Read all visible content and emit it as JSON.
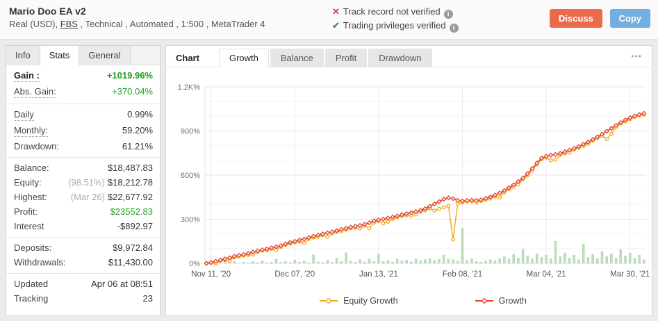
{
  "header": {
    "title": "Mario Doo EA v2",
    "subtitle_prefix": "Real (USD), ",
    "subtitle_link": "FBS",
    "subtitle_suffix": " , Technical , Automated , 1:500 , MetaTrader 4",
    "verification": [
      {
        "status": "fail",
        "icon_glyph": "✕",
        "text": "Track record not verified",
        "info_glyph": "i"
      },
      {
        "status": "ok",
        "icon_glyph": "✔",
        "text": "Trading privileges verified",
        "info_glyph": "i"
      }
    ],
    "discuss_label": "Discuss",
    "copy_label": "Copy"
  },
  "sidebar": {
    "tabs": [
      {
        "label": "Info",
        "active": false
      },
      {
        "label": "Stats",
        "active": true
      },
      {
        "label": "General",
        "active": false
      }
    ],
    "rows": [
      {
        "label": "Gain :",
        "value": "+1019.96%",
        "dotted": true,
        "bold": true,
        "value_class": "green bold"
      },
      {
        "label": "Abs. Gain:",
        "value": "+370.04%",
        "dotted": true,
        "value_class": "green"
      },
      {
        "label": "Daily",
        "value": "0.99%",
        "dotted": true,
        "divider": true
      },
      {
        "label": "Monthly:",
        "value": "59.20%",
        "dotted": true
      },
      {
        "label": "Drawdown:",
        "value": "61.21%"
      },
      {
        "label": "Balance:",
        "value": "$18,487.83",
        "divider": true
      },
      {
        "label": "Equity:",
        "prefix": "(98.51%)",
        "value": "$18,212.78"
      },
      {
        "label": "Highest:",
        "prefix": "(Mar 26)",
        "value": "$22,677.92"
      },
      {
        "label": "Profit:",
        "value": "$23552.83",
        "value_class": "green"
      },
      {
        "label": "Interest",
        "value": "-$892.97"
      },
      {
        "label": "Deposits:",
        "value": "$9,972.84",
        "divider": true
      },
      {
        "label": "Withdrawals:",
        "value": "$11,430.00"
      },
      {
        "label": "Updated",
        "value": "Apr 06 at 08:51",
        "divider": true
      },
      {
        "label": "Tracking",
        "value": "23"
      }
    ]
  },
  "chart_panel": {
    "chart_label": "Chart",
    "tabs": [
      {
        "label": "Growth",
        "active": true
      },
      {
        "label": "Balance",
        "active": false
      },
      {
        "label": "Profit",
        "active": false
      },
      {
        "label": "Drawdown",
        "active": false
      }
    ],
    "menu_icon": "•••"
  },
  "chart_data": {
    "type": "line",
    "title": "Growth",
    "xlabel": "",
    "ylabel": "",
    "ylim": [
      0,
      1200
    ],
    "grid": true,
    "legend_position": "bottom",
    "yticks": [
      {
        "value": 0,
        "label": "0%"
      },
      {
        "value": 300,
        "label": "300%"
      },
      {
        "value": 600,
        "label": "600%"
      },
      {
        "value": 900,
        "label": "900%"
      },
      {
        "value": 1200,
        "label": "1.2K%"
      }
    ],
    "minor_step": 100,
    "xticks": [
      {
        "index": 1,
        "label": "Nov 11, '20"
      },
      {
        "index": 19,
        "label": "Dec 07, '20"
      },
      {
        "index": 37,
        "label": "Jan 13, '21"
      },
      {
        "index": 55,
        "label": "Feb 08, '21"
      },
      {
        "index": 73,
        "label": "Mar 04, '21"
      },
      {
        "index": 91,
        "label": "Mar 30, '21"
      }
    ],
    "series": [
      {
        "name": "Equity Growth",
        "marker": "circle",
        "color": "#F5A623",
        "values": [
          0,
          2,
          0,
          16,
          22,
          18,
          40,
          45,
          54,
          56,
          60,
          77,
          86,
          88,
          98,
          90,
          112,
          126,
          133,
          142,
          146,
          138,
          165,
          176,
          180,
          192,
          180,
          204,
          214,
          218,
          228,
          238,
          240,
          238,
          256,
          238,
          276,
          287,
          272,
          283,
          300,
          314,
          320,
          326,
          323,
          332,
          350,
          360,
          373,
          359,
          370,
          381,
          391,
          162,
          408,
          414,
          420,
          420,
          413,
          424,
          432,
          440,
          454,
          448,
          483,
          504,
          519,
          536,
          570,
          598,
          630,
          672,
          707,
          718,
          700,
          705,
          736,
          748,
          752,
          774,
          785,
          798,
          813,
          834,
          850,
          866,
          845,
          880,
          928,
          950,
          963,
          980,
          994,
          1004,
          1010
        ]
      },
      {
        "name": "Growth",
        "marker": "diamond",
        "color": "#E2452F",
        "values": [
          0,
          6,
          14,
          22,
          30,
          38,
          48,
          55,
          60,
          68,
          78,
          85,
          92,
          98,
          106,
          112,
          120,
          132,
          143,
          150,
          158,
          166,
          175,
          184,
          192,
          200,
          208,
          214,
          222,
          230,
          238,
          246,
          252,
          258,
          266,
          276,
          288,
          295,
          300,
          308,
          315,
          322,
          330,
          338,
          345,
          352,
          360,
          372,
          388,
          404,
          420,
          436,
          446,
          440,
          428,
          424,
          428,
          430,
          428,
          432,
          442,
          452,
          464,
          478,
          495,
          514,
          534,
          556,
          580,
          610,
          645,
          682,
          715,
          728,
          735,
          740,
          748,
          758,
          770,
          782,
          795,
          810,
          825,
          842,
          860,
          878,
          898,
          918,
          938,
          958,
          975,
          990,
          1002,
          1012,
          1020
        ]
      }
    ],
    "bars": {
      "color": "#BEDEBE",
      "edge_color": "#A9D1A9",
      "values": [
        0,
        0,
        6,
        0,
        10,
        4,
        14,
        0,
        8,
        3,
        12,
        5,
        18,
        4,
        8,
        28,
        6,
        12,
        5,
        22,
        8,
        14,
        5,
        58,
        10,
        6,
        20,
        8,
        35,
        12,
        72,
        15,
        8,
        25,
        10,
        30,
        12,
        62,
        12,
        20,
        8,
        28,
        15,
        22,
        10,
        30,
        18,
        25,
        35,
        20,
        28,
        55,
        30,
        25,
        15,
        238,
        20,
        30,
        12,
        8,
        15,
        25,
        18,
        30,
        45,
        28,
        60,
        35,
        95,
        50,
        30,
        65,
        40,
        55,
        30,
        150,
        45,
        70,
        35,
        55,
        25,
        130,
        40,
        60,
        30,
        80,
        45,
        65,
        35,
        95,
        50,
        70,
        35,
        55,
        25
      ]
    },
    "legend": [
      {
        "label": "Equity Growth",
        "color": "#F5A623",
        "marker": "circle"
      },
      {
        "label": "Growth",
        "color": "#E2452F",
        "marker": "diamond"
      }
    ]
  },
  "colors": {
    "accent_orange": "#EC6A4C",
    "accent_blue": "#73AEDE",
    "green_text": "#1CA41C",
    "growth_line": "#E2452F",
    "equity_line": "#F5A623",
    "bars": "#BEDEBE",
    "grid_major": "#E4E4E4",
    "grid_minor": "#F4F4F4",
    "grid_vertical": "#ECECEC"
  }
}
